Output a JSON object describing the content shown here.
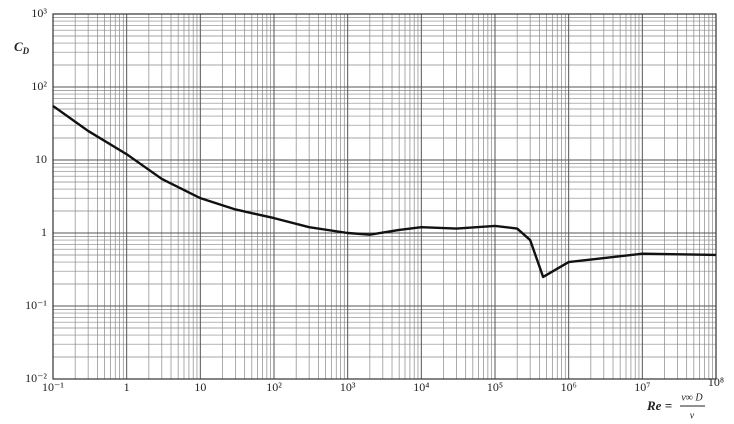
{
  "chart_data": {
    "type": "line",
    "x_label": {
      "lhs": "Re =",
      "numerator": "v∞ D",
      "denominator": "ν"
    },
    "y_label": {
      "main": "C",
      "sub": "D"
    },
    "log_x": true,
    "log_y": true,
    "grid": true,
    "minor_grid": true,
    "xlim": [
      0.1,
      100000000
    ],
    "ylim": [
      0.01,
      1000
    ],
    "xticks": [
      {
        "value": 0.1,
        "label": "10⁻¹"
      },
      1,
      10,
      {
        "value": 100,
        "label": "10²"
      },
      {
        "value": 1000,
        "label": "10³"
      },
      {
        "value": 10000,
        "label": "10⁴"
      },
      {
        "value": 100000,
        "label": "10⁵"
      },
      {
        "value": 1000000,
        "label": "10⁶"
      },
      {
        "value": 10000000,
        "label": "10⁷"
      },
      {
        "value": 100000000,
        "label": "10⁸"
      }
    ],
    "yticks": [
      {
        "value": 0.01,
        "label": "10⁻²"
      },
      {
        "value": 0.1,
        "label": "10⁻¹"
      },
      1,
      10,
      {
        "value": 100,
        "label": "10²"
      },
      {
        "value": 1000,
        "label": "10³"
      }
    ],
    "series": [
      {
        "name": "C_D",
        "color": "#111",
        "x": [
          0.1,
          0.3,
          1,
          3,
          10,
          30,
          100,
          300,
          1000,
          2000,
          5000,
          10000,
          30000,
          100000,
          200000,
          300000,
          450000,
          1000000,
          10000000,
          100000000
        ],
        "values": [
          55,
          25,
          12,
          5.5,
          3,
          2.1,
          1.6,
          1.2,
          1.0,
          0.95,
          1.1,
          1.2,
          1.15,
          1.25,
          1.15,
          0.8,
          0.25,
          0.4,
          0.52,
          0.5
        ]
      }
    ]
  }
}
